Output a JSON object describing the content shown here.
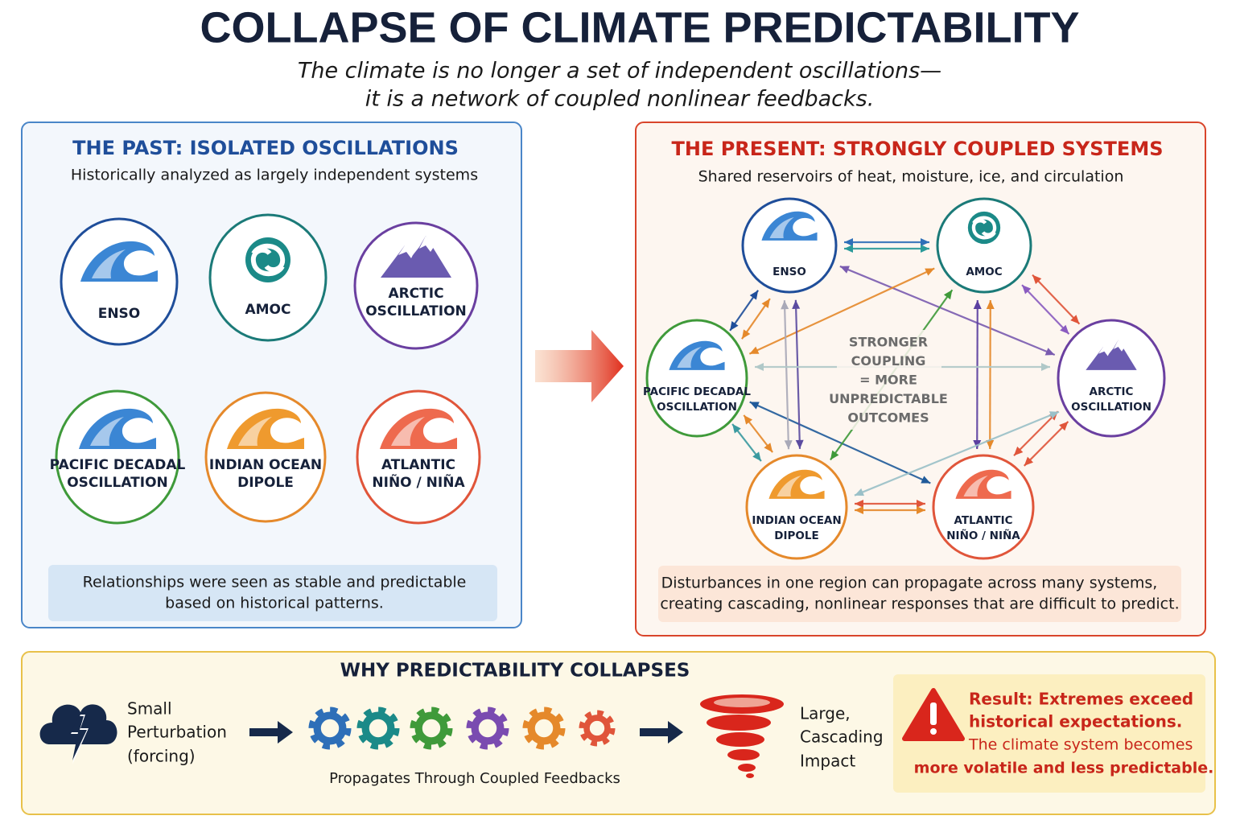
{
  "header": {
    "title": "COLLAPSE OF CLIMATE PREDICTABILITY",
    "subtitle_lines": [
      "The climate is no longer a set of independent oscillations—",
      "it is a network of coupled nonlinear feedbacks."
    ]
  },
  "past": {
    "title": "THE PAST: ISOLATED OSCILLATIONS",
    "subtitle": "Historically analyzed as largely independent systems",
    "nodes": [
      {
        "label_lines": [
          "ENSO"
        ]
      },
      {
        "label_lines": [
          "AMOC"
        ]
      },
      {
        "label_lines": [
          "ARCTIC",
          "OSCILLATION"
        ]
      },
      {
        "label_lines": [
          "PACIFIC DECADAL",
          "OSCILLATION"
        ]
      },
      {
        "label_lines": [
          "INDIAN OCEAN",
          "DIPOLE"
        ]
      },
      {
        "label_lines": [
          "ATLANTIC",
          "NIÑO / NIÑA"
        ]
      }
    ],
    "note_lines": [
      "Relationships were seen as stable and predictable",
      "based on historical patterns."
    ]
  },
  "present": {
    "title": "THE PRESENT: STRONGLY COUPLED SYSTEMS",
    "subtitle": "Shared reservoirs of heat, moisture, ice, and circulation",
    "nodes": [
      {
        "label_lines": [
          "ENSO"
        ]
      },
      {
        "label_lines": [
          "AMOC"
        ]
      },
      {
        "label_lines": [
          "ARCTIC",
          "OSCILLATION"
        ]
      },
      {
        "label_lines": [
          "PACIFIC DECADAL",
          "OSCILLATION"
        ]
      },
      {
        "label_lines": [
          "INDIAN OCEAN",
          "DIPOLE"
        ]
      },
      {
        "label_lines": [
          "ATLANTIC",
          "NIÑO / NIÑA"
        ]
      }
    ],
    "center_lines": [
      "STRONGER",
      "COUPLING",
      "= MORE",
      "UNPREDICTABLE",
      "OUTCOMES"
    ],
    "note_lines": [
      "Disturbances in one region can propagate across many systems,",
      "creating cascading, nonlinear responses that are difficult to predict."
    ]
  },
  "why": {
    "title": "WHY PREDICTABILITY COLLAPSES",
    "input_lines": [
      "Small",
      "Perturbation",
      "(forcing)"
    ],
    "gears_label": "Propagates Through Coupled Feedbacks",
    "output_lines": [
      "Large,",
      "Cascading",
      "Impact"
    ],
    "result": {
      "bold_lines": [
        "Result: Extremes exceed",
        "historical expectations."
      ],
      "lines": [
        "The climate system becomes",
        "more volatile and less predictable."
      ]
    }
  }
}
